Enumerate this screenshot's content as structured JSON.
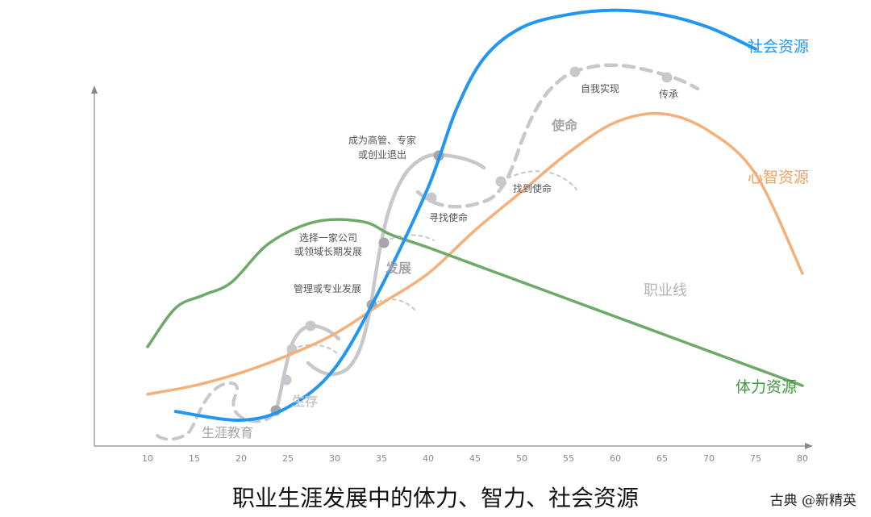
{
  "title": "职业生涯发展中的体力、智力、社会资源",
  "credit": "古典 @新精英",
  "series_labels": {
    "social": "社会资源",
    "mental": "心智资源",
    "physical": "体力资源",
    "career": "职业线"
  },
  "colors": {
    "social": "#2196F3",
    "mental": "#F5B07A",
    "physical": "#6DAA6A",
    "career": "#C8C8CC",
    "axis": "#888888"
  },
  "stage_labels": [
    "生涯教育",
    "生存",
    "发展",
    "使命"
  ],
  "milestones": [
    "管理或专业发展",
    "选择一家公司\n或领域长期发展",
    "成为高管、专家\n或创业退出",
    "寻找使命",
    "找到使命",
    "自我实现",
    "传承"
  ],
  "chart_data": {
    "type": "line",
    "x_ticks": [
      10,
      15,
      20,
      25,
      30,
      35,
      40,
      45,
      50,
      55,
      60,
      65,
      70,
      75,
      80
    ],
    "series": [
      {
        "name": "社会资源",
        "x": [
          13,
          20,
          25,
          30,
          35,
          40,
          43,
          46,
          50,
          55,
          60,
          65,
          70,
          75
        ],
        "y": [
          8,
          6,
          9,
          18,
          37,
          60,
          78,
          90,
          97,
          100,
          101,
          100,
          97,
          92
        ]
      },
      {
        "name": "心智资源",
        "x": [
          10,
          15,
          20,
          25,
          30,
          35,
          40,
          45,
          50,
          55,
          60,
          65,
          70,
          75,
          80
        ],
        "y": [
          12,
          14,
          17,
          21,
          26,
          33,
          40,
          50,
          59,
          68,
          75,
          77,
          73,
          63,
          40
        ]
      },
      {
        "name": "体力资源",
        "x": [
          10,
          13,
          16,
          19,
          23,
          28,
          33,
          36,
          40,
          45,
          50,
          55,
          60,
          65,
          70,
          75,
          80
        ],
        "y": [
          23,
          32,
          35,
          38,
          47,
          52,
          52,
          49,
          46,
          42,
          38,
          34,
          30,
          26,
          22,
          18,
          14
        ]
      }
    ]
  }
}
